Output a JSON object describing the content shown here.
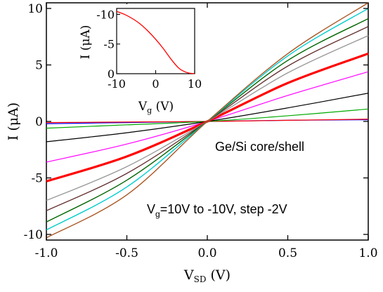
{
  "chart_data": [
    {
      "type": "line",
      "title": "",
      "xlabel": "V",
      "xlabel_sub": "SD",
      "xlabel_unit": " (V)",
      "ylabel": "I (μA)",
      "xlim": [
        -1.0,
        1.0
      ],
      "ylim": [
        -10.5,
        10.5
      ],
      "x_ticks": [
        "-1.0",
        "-0.5",
        "0.0",
        "0.5",
        "1.0"
      ],
      "y_ticks": [
        "-10",
        "-5",
        "0",
        "5",
        "10"
      ],
      "grid": false,
      "annotations": {
        "material": "Ge/Si core/shell",
        "sweep_prefix": "V",
        "sweep_sub": "g",
        "sweep_text": "=10V to -10V, step -2V"
      },
      "x": [
        -1.0,
        -0.5,
        0.0,
        0.5,
        1.0
      ],
      "series": [
        {
          "color": "#0000ff",
          "width": 1.2,
          "values": [
            -0.2,
            -0.1,
            0.0,
            0.1,
            0.15
          ]
        },
        {
          "color": "#ff0000",
          "width": 1.2,
          "values": [
            -0.1,
            -0.05,
            0.0,
            0.1,
            0.2
          ]
        },
        {
          "color": "#00aa00",
          "width": 1.2,
          "values": [
            -0.6,
            -0.3,
            0.0,
            0.5,
            1.1
          ]
        },
        {
          "color": "#000000",
          "width": 1.2,
          "values": [
            -1.8,
            -1.0,
            0.0,
            1.2,
            2.5
          ]
        },
        {
          "color": "#ff00ff",
          "width": 1.2,
          "values": [
            -3.6,
            -2.0,
            0.0,
            2.3,
            4.4
          ]
        },
        {
          "color": "#ff0000",
          "width": 3.2,
          "values": [
            -5.3,
            -3.1,
            0.0,
            3.4,
            6.0
          ]
        },
        {
          "color": "#999999",
          "width": 1.4,
          "values": [
            -7.0,
            -4.0,
            0.0,
            4.3,
            7.6
          ]
        },
        {
          "color": "#663333",
          "width": 1.4,
          "values": [
            -7.9,
            -4.6,
            0.0,
            4.9,
            8.4
          ]
        },
        {
          "color": "#006600",
          "width": 1.4,
          "values": [
            -8.9,
            -5.2,
            0.0,
            5.4,
            9.1
          ]
        },
        {
          "color": "#00cccc",
          "width": 1.4,
          "values": [
            -9.6,
            -5.8,
            0.0,
            5.8,
            10.0
          ]
        },
        {
          "color": "#aa5522",
          "width": 1.4,
          "values": [
            -10.3,
            -6.5,
            0.0,
            6.0,
            10.5
          ]
        }
      ]
    },
    {
      "type": "line",
      "title": "",
      "xlabel": "V",
      "xlabel_sub": "g",
      "xlabel_unit": " (V)",
      "ylabel": "I (μA)",
      "xlim": [
        -10,
        10
      ],
      "ylim": [
        0,
        -11
      ],
      "x_ticks": [
        "-10",
        "0",
        "10"
      ],
      "y_ticks": [
        "-10",
        "-5",
        "0"
      ],
      "grid": false,
      "series": [
        {
          "color": "#ff0000",
          "x": [
            -10,
            -8,
            -6,
            -4,
            -2,
            0,
            2,
            4,
            6,
            8,
            10
          ],
          "values": [
            -10.5,
            -10.0,
            -9.3,
            -8.4,
            -7.2,
            -5.8,
            -4.2,
            -2.4,
            -0.9,
            -0.2,
            0.0
          ]
        }
      ]
    }
  ]
}
